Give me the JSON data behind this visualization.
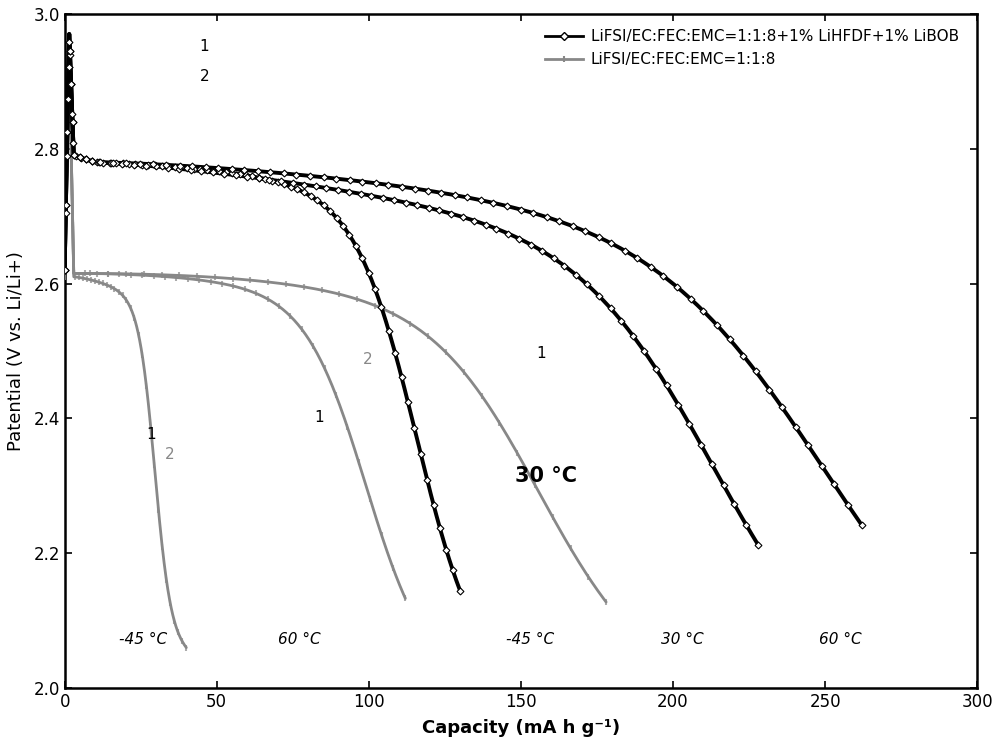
{
  "xlabel": "Capacity (mA h g⁻¹)",
  "ylabel": "Patential (V vs. Li/Li+)",
  "xlim": [
    0,
    300
  ],
  "ylim": [
    2.0,
    3.0
  ],
  "xticks": [
    0,
    50,
    100,
    150,
    200,
    250,
    300
  ],
  "yticks": [
    2.0,
    2.2,
    2.4,
    2.6,
    2.8,
    3.0
  ],
  "legend_labels": [
    "LiFSI/EC:FEC:EMC=1:1:8+1% LiHFDF+1% LiBOB",
    "LiFSI/EC:FEC:EMC=1:1:8"
  ],
  "color_series1": "#000000",
  "color_series2": "#888888",
  "lw1": 2.8,
  "lw2": 2.0
}
